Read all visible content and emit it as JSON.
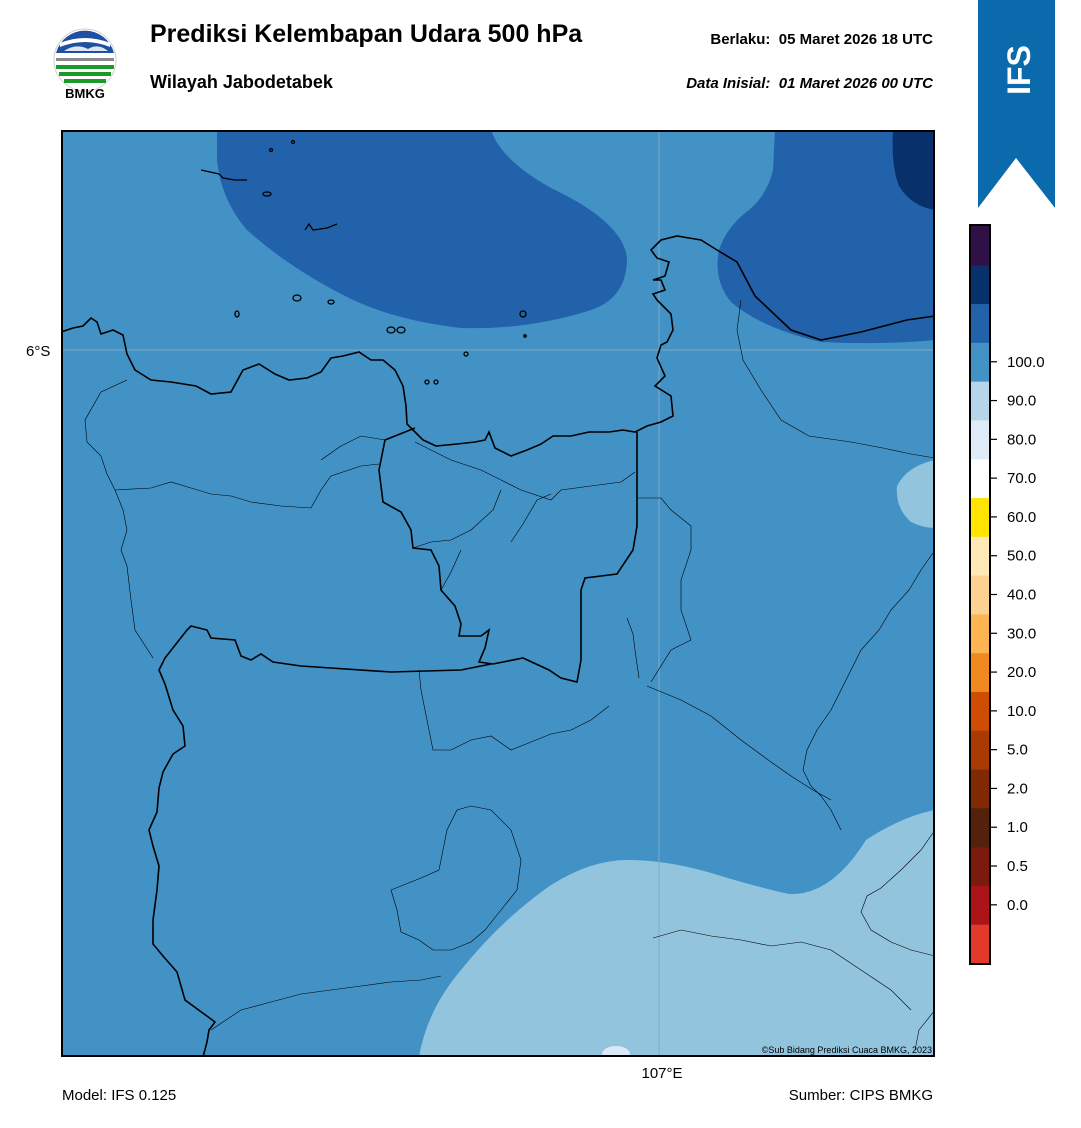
{
  "header": {
    "title": "Prediksi Kelembapan Udara 500 hPa",
    "region": "Wilayah Jabodetabek",
    "valid_label": "Berlaku:",
    "valid_time": "05 Maret 2026 18 UTC",
    "init_label": "Data Inisial:",
    "init_time": "01 Maret 2026 00 UTC"
  },
  "logo": {
    "text": "BMKG",
    "icon": "bmkg-logo-icon"
  },
  "banner": {
    "text": "IFS",
    "color": "#0a6aab"
  },
  "map": {
    "lat_label": "6°S",
    "lon_label": "107°E",
    "credit": "©Sub Bidang Prediksi Cuaca BMKG, 2023",
    "fill_colors": {
      "70-80": "#4292c6",
      "80-90": "#2262ab",
      "90-100": "#08306b",
      "60-70": "#93c4de",
      "50-60": "#dbe9f6"
    }
  },
  "colorbar": {
    "labels": [
      "0.0",
      "0.5",
      "1.0",
      "2.0",
      "5.0",
      "10.0",
      "20.0",
      "30.0",
      "40.0",
      "50.0",
      "60.0",
      "70.0",
      "80.0",
      "90.0",
      "100.0"
    ],
    "colors": [
      "#e3392a",
      "#ab1519",
      "#7a1b0e",
      "#53210c",
      "#7f2a04",
      "#a93a03",
      "#cf4c05",
      "#f08a20",
      "#fdb553",
      "#fdd190",
      "#ffe9b5",
      "#ffe400",
      "#ffffff",
      "#deebf7",
      "#b8d6ea",
      "#4292c6",
      "#2262ab",
      "#08306b",
      "#2f1047"
    ]
  },
  "footer": {
    "model": "Model: IFS 0.125",
    "source": "Sumber: CIPS BMKG"
  }
}
